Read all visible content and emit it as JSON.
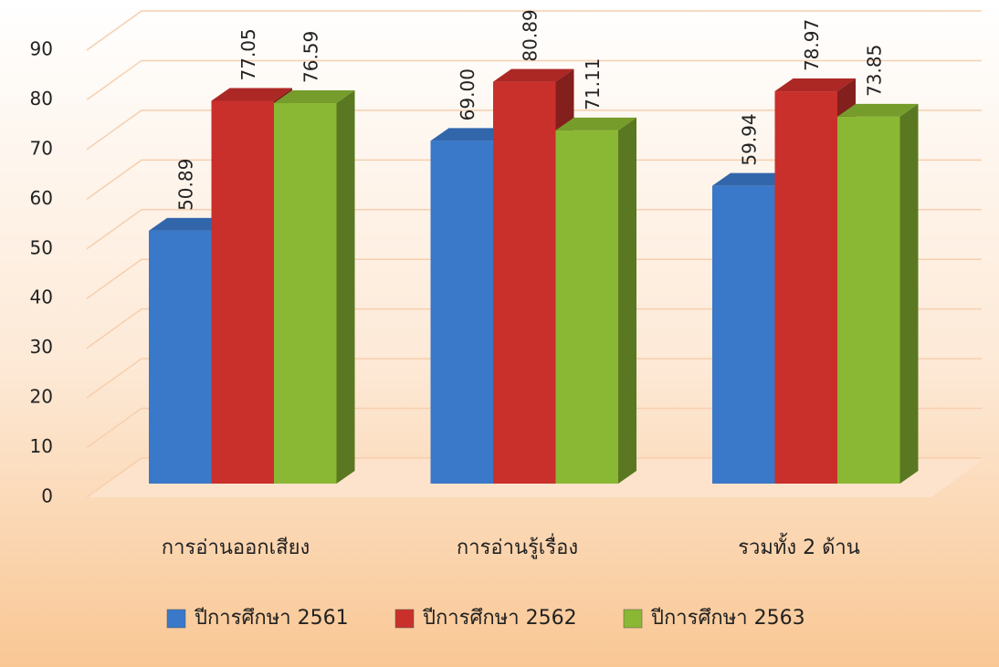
{
  "chart_data": {
    "type": "bar3d",
    "categories": [
      "การอ่านออกเสียง",
      "การอ่านรู้เรื่อง",
      "รวมทั้ง  2 ด้าน"
    ],
    "series": [
      {
        "name": "ปีการศึกษา 2561",
        "color": "#3a78c9",
        "values": [
          50.89,
          69.0,
          59.94
        ],
        "value_labels": [
          "50.89",
          "69.00",
          "59.94"
        ]
      },
      {
        "name": "ปีการศึกษา 2562",
        "color": "#c9302c",
        "values": [
          77.05,
          80.89,
          78.97
        ]
      },
      {
        "name": "ปีการศึกษา 2563",
        "color": "#8bb834",
        "values": [
          76.59,
          71.11,
          73.85
        ]
      }
    ],
    "ylim": [
      0,
      90
    ],
    "yticks": [
      0,
      10,
      20,
      30,
      40,
      50,
      60,
      70,
      80,
      90
    ],
    "grid": true,
    "legend": "bottom"
  }
}
